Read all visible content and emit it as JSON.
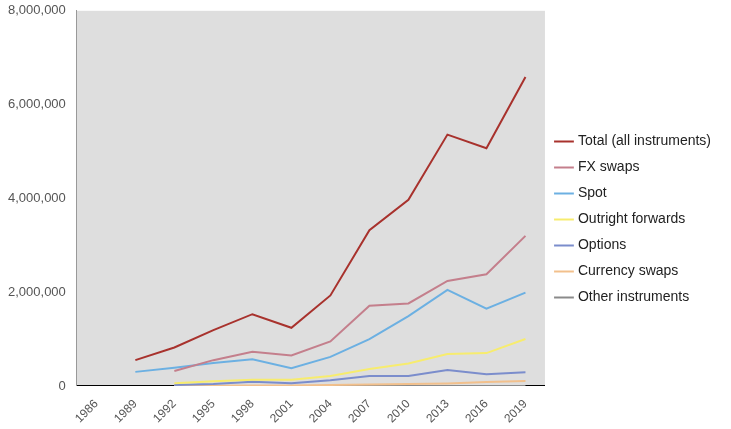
{
  "chart_data": {
    "type": "line",
    "categories": [
      "1986",
      "1989",
      "1992",
      "1995",
      "1998",
      "2001",
      "2004",
      "2007",
      "2010",
      "2013",
      "2016",
      "2019"
    ],
    "series": [
      {
        "name": "Total (all instruments)",
        "color": "#a8322d",
        "values": [
          null,
          550000,
          820000,
          1190000,
          1530000,
          1240000,
          1930000,
          3320000,
          3970000,
          5360000,
          5070000,
          6590000
        ]
      },
      {
        "name": "FX swaps",
        "color": "#c47f8c",
        "values": [
          null,
          null,
          320000,
          550000,
          730000,
          650000,
          950000,
          1710000,
          1760000,
          2240000,
          2380000,
          3200000
        ]
      },
      {
        "name": "Spot",
        "color": "#6cb0e2",
        "values": [
          null,
          300000,
          390000,
          490000,
          570000,
          380000,
          620000,
          1000000,
          1490000,
          2050000,
          1650000,
          1990000
        ]
      },
      {
        "name": "Outright forwards",
        "color": "#f7ec6e",
        "values": [
          null,
          null,
          60000,
          100000,
          130000,
          130000,
          210000,
          360000,
          480000,
          680000,
          700000,
          1000000
        ]
      },
      {
        "name": "Options",
        "color": "#7b8dcc",
        "values": [
          null,
          null,
          20000,
          40000,
          90000,
          60000,
          120000,
          210000,
          210000,
          340000,
          250000,
          290000
        ]
      },
      {
        "name": "Currency swaps",
        "color": "#f2c08c",
        "values": [
          null,
          null,
          2000,
          4000,
          10000,
          7000,
          21000,
          31000,
          43000,
          54000,
          82000,
          108000
        ]
      },
      {
        "name": "Other instruments",
        "color": "#8a8a8a",
        "values": [
          null,
          null,
          0,
          0,
          0,
          0,
          0,
          0,
          0,
          0,
          0,
          0
        ]
      }
    ],
    "ylim": [
      0,
      8000000
    ],
    "yticks": [
      0,
      {
        "value": 2000000,
        "label": "2,000,000"
      },
      {
        "value": 4000000,
        "label": "4,000,000"
      },
      {
        "value": 6000000,
        "label": "6,000,000"
      },
      {
        "value": 8000000,
        "label": "8,000,000"
      }
    ],
    "grid": false,
    "legend": "right"
  }
}
